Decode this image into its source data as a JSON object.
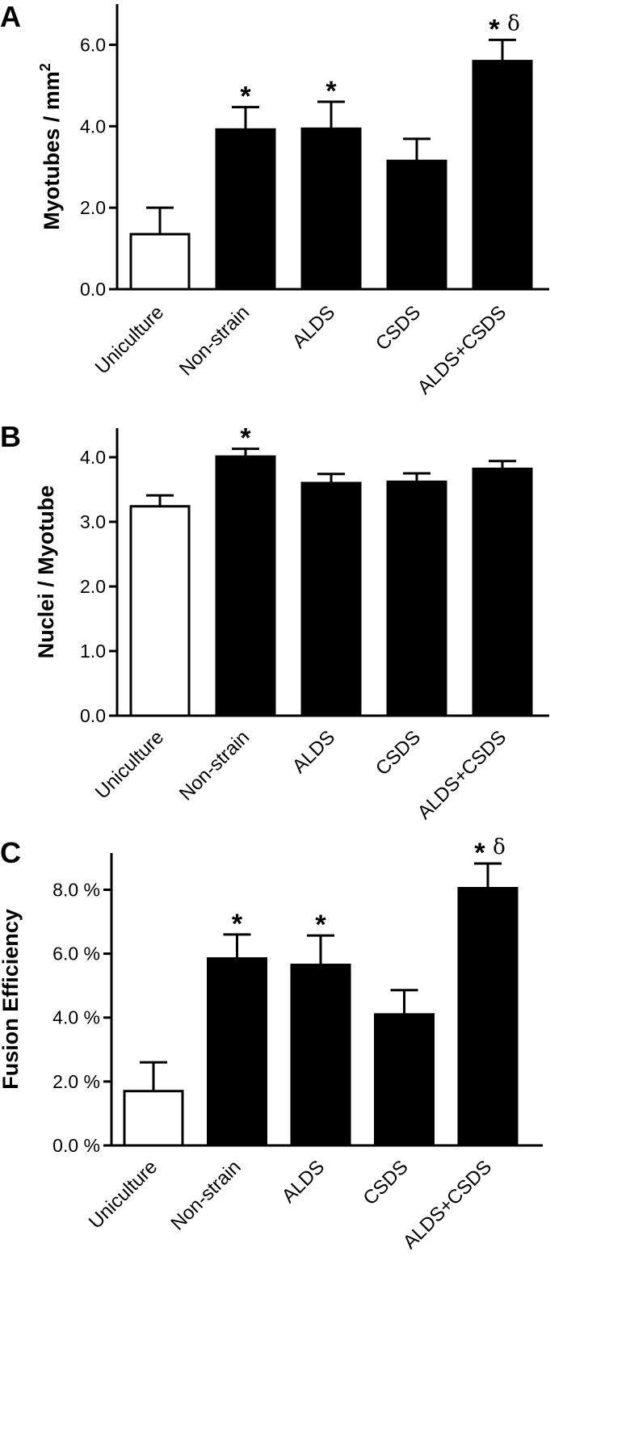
{
  "chart_data": [
    {
      "type": "bar",
      "panel": "A",
      "ylabel": "Myotubes / mm",
      "ylabel_sup": "2",
      "categories": [
        "Uniculture",
        "Non-strain",
        "ALDS",
        "CSDS",
        "ALDS+CSDS"
      ],
      "values": [
        1.35,
        3.92,
        3.94,
        3.15,
        5.6
      ],
      "errors": [
        0.65,
        0.55,
        0.66,
        0.54,
        0.52
      ],
      "significance": [
        "",
        "*",
        "*",
        "",
        "*"
      ],
      "significance_extra": [
        "",
        "",
        "",
        "",
        "δ"
      ],
      "bar_fills": [
        "#ffffff",
        "#000000",
        "#000000",
        "#000000",
        "#000000"
      ],
      "ylim": [
        0,
        7
      ],
      "yticks": [
        0,
        2,
        4,
        6
      ],
      "ytick_labels": [
        "0.0",
        "2.0",
        "4.0",
        "6.0"
      ],
      "grid": false
    },
    {
      "type": "bar",
      "panel": "B",
      "ylabel": "Nuclei / Myotube",
      "categories": [
        "Uniculture",
        "Non-strain",
        "ALDS",
        "CSDS",
        "ALDS+CSDS"
      ],
      "values": [
        3.24,
        4.01,
        3.6,
        3.62,
        3.82
      ],
      "errors": [
        0.17,
        0.12,
        0.14,
        0.13,
        0.12
      ],
      "significance": [
        "",
        "*",
        "",
        "",
        ""
      ],
      "significance_extra": [
        "",
        "",
        "",
        "",
        ""
      ],
      "bar_fills": [
        "#ffffff",
        "#000000",
        "#000000",
        "#000000",
        "#000000"
      ],
      "ylim": [
        0,
        4.45
      ],
      "yticks": [
        0,
        1,
        2,
        3,
        4
      ],
      "ytick_labels": [
        "0.0",
        "1.0",
        "2.0",
        "3.0",
        "4.0"
      ],
      "grid": false
    },
    {
      "type": "bar",
      "panel": "C",
      "ylabel": "Fusion Efficiency",
      "categories": [
        "Uniculture",
        "Non-strain",
        "ALDS",
        "CSDS",
        "ALDS+CSDS"
      ],
      "values": [
        1.7,
        5.85,
        5.65,
        4.1,
        8.05
      ],
      "errors": [
        0.9,
        0.75,
        0.92,
        0.76,
        0.77
      ],
      "significance": [
        "",
        "*",
        "*",
        "",
        "*"
      ],
      "significance_extra": [
        "",
        "",
        "",
        "",
        "δ"
      ],
      "bar_fills": [
        "#ffffff",
        "#000000",
        "#000000",
        "#000000",
        "#000000"
      ],
      "ylim": [
        0,
        9.15
      ],
      "yticks": [
        0,
        2,
        4,
        6,
        8
      ],
      "ytick_labels": [
        "0.0 %",
        "2.0 %",
        "4.0 %",
        "6.0 %",
        "8.0 %"
      ],
      "grid": false
    }
  ]
}
